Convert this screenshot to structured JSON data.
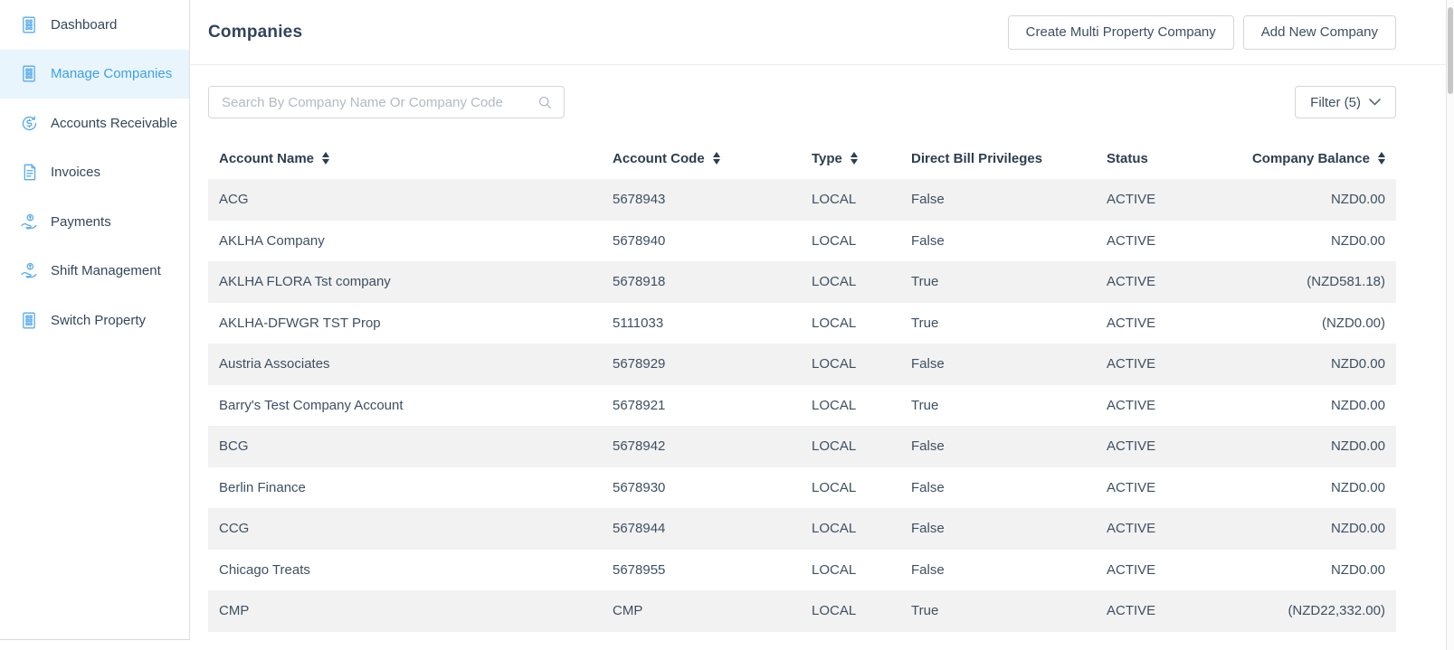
{
  "sidebar": {
    "items": [
      {
        "label": "Dashboard",
        "icon": "building",
        "selected": false
      },
      {
        "label": "Manage Companies",
        "icon": "building",
        "selected": true
      },
      {
        "label": "Accounts Receivable",
        "icon": "currency-refresh",
        "selected": false
      },
      {
        "label": "Invoices",
        "icon": "invoice",
        "selected": false
      },
      {
        "label": "Payments",
        "icon": "hand-coin",
        "selected": false
      },
      {
        "label": "Shift Management",
        "icon": "hand-coin",
        "selected": false
      },
      {
        "label": "Switch Property",
        "icon": "building",
        "selected": false
      }
    ]
  },
  "header": {
    "title": "Companies",
    "create_multi_button": "Create Multi Property Company",
    "add_new_button": "Add New Company"
  },
  "toolbar": {
    "search_placeholder": "Search By Company Name Or Company Code",
    "search_value": "",
    "filter_label": "Filter (5)"
  },
  "table": {
    "columns": [
      {
        "label": "Account Name",
        "sortable": true
      },
      {
        "label": "Account Code",
        "sortable": true
      },
      {
        "label": "Type",
        "sortable": true
      },
      {
        "label": "Direct Bill Privileges",
        "sortable": false
      },
      {
        "label": "Status",
        "sortable": false
      },
      {
        "label": "Company Balance",
        "sortable": true
      }
    ],
    "rows": [
      {
        "account_name": "ACG",
        "account_code": "5678943",
        "type": "LOCAL",
        "direct_bill": "False",
        "status": "ACTIVE",
        "balance": "NZD0.00"
      },
      {
        "account_name": "AKLHA Company",
        "account_code": "5678940",
        "type": "LOCAL",
        "direct_bill": "False",
        "status": "ACTIVE",
        "balance": "NZD0.00"
      },
      {
        "account_name": "AKLHA FLORA Tst company",
        "account_code": "5678918",
        "type": "LOCAL",
        "direct_bill": "True",
        "status": "ACTIVE",
        "balance": "(NZD581.18)"
      },
      {
        "account_name": "AKLHA-DFWGR TST Prop",
        "account_code": "5111033",
        "type": "LOCAL",
        "direct_bill": "True",
        "status": "ACTIVE",
        "balance": "(NZD0.00)"
      },
      {
        "account_name": "Austria Associates",
        "account_code": "5678929",
        "type": "LOCAL",
        "direct_bill": "False",
        "status": "ACTIVE",
        "balance": "NZD0.00"
      },
      {
        "account_name": "Barry's Test Company Account",
        "account_code": "5678921",
        "type": "LOCAL",
        "direct_bill": "True",
        "status": "ACTIVE",
        "balance": "NZD0.00"
      },
      {
        "account_name": "BCG",
        "account_code": "5678942",
        "type": "LOCAL",
        "direct_bill": "False",
        "status": "ACTIVE",
        "balance": "NZD0.00"
      },
      {
        "account_name": "Berlin Finance",
        "account_code": "5678930",
        "type": "LOCAL",
        "direct_bill": "False",
        "status": "ACTIVE",
        "balance": "NZD0.00"
      },
      {
        "account_name": "CCG",
        "account_code": "5678944",
        "type": "LOCAL",
        "direct_bill": "False",
        "status": "ACTIVE",
        "balance": "NZD0.00"
      },
      {
        "account_name": "Chicago Treats",
        "account_code": "5678955",
        "type": "LOCAL",
        "direct_bill": "False",
        "status": "ACTIVE",
        "balance": "NZD0.00"
      },
      {
        "account_name": "CMP",
        "account_code": "CMP",
        "type": "LOCAL",
        "direct_bill": "True",
        "status": "ACTIVE",
        "balance": "(NZD22,332.00)"
      }
    ]
  },
  "colors": {
    "accent_blue": "#3da0e8",
    "icon_blue": "#58abe9",
    "sidebar_selected_bg": "#e9f5fd",
    "heading_text": "#2d3e50",
    "body_text": "#3e4f63",
    "row_stripe": "#f2f2f2",
    "border": "#d6d6d6"
  }
}
